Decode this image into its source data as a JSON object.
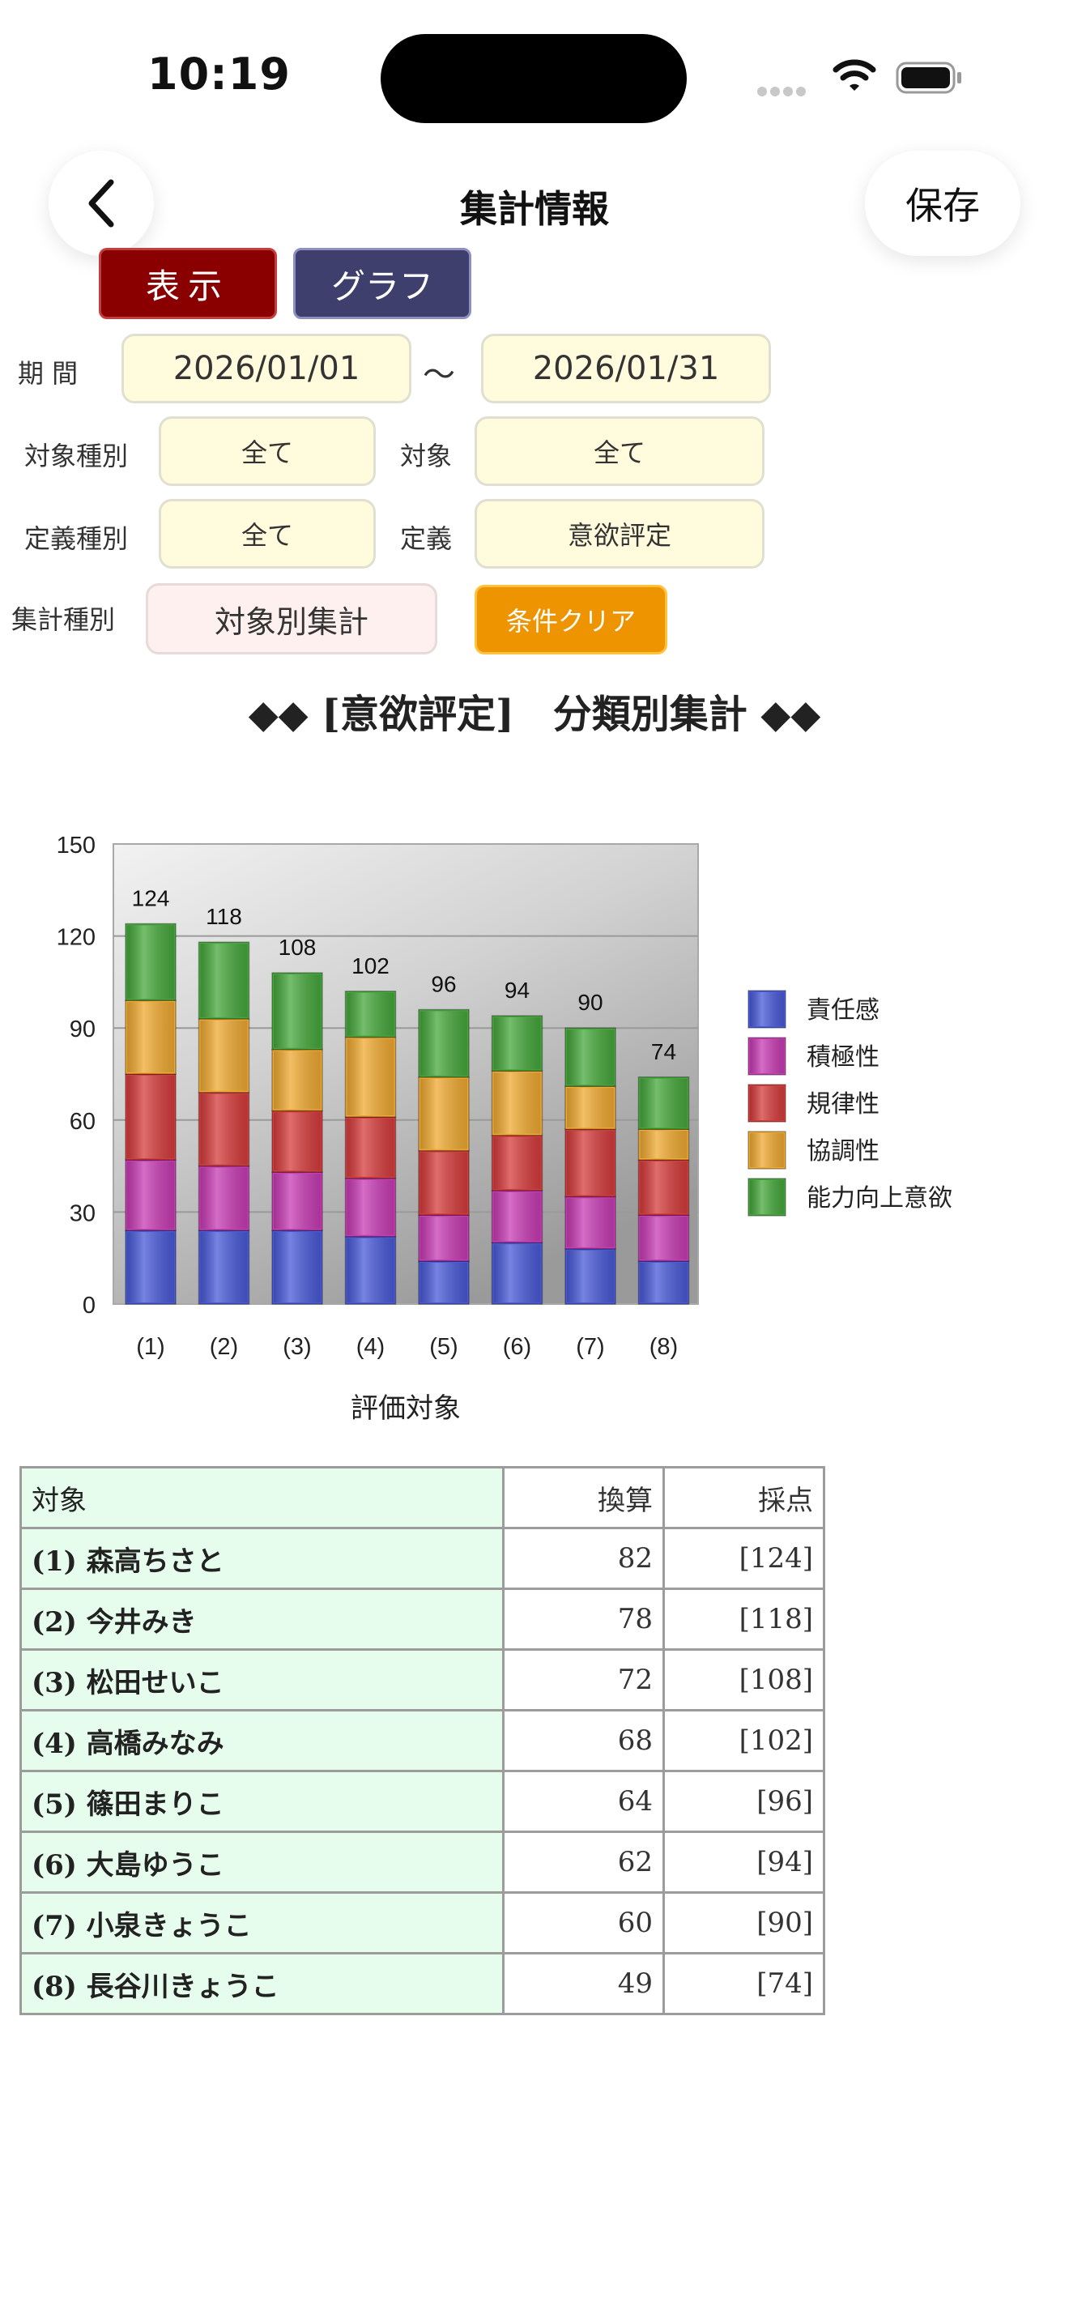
{
  "status": {
    "time": "10:19"
  },
  "nav": {
    "title": "集計情報",
    "save_label": "保存"
  },
  "mode": {
    "display_label": "表示",
    "graph_label": "グラフ"
  },
  "filters": {
    "period_label": "期 間",
    "date_from": "2026/01/01",
    "tilde": "～",
    "date_to": "2026/01/31",
    "target_type_label": "対象種別",
    "target_type_value": "全て",
    "target_label": "対象",
    "target_value": "全て",
    "def_type_label": "定義種別",
    "def_type_value": "全て",
    "def_label": "定義",
    "def_value": "意欲評定",
    "agg_type_label": "集計種別",
    "agg_type_value": "対象別集計",
    "clear_label": "条件クリア"
  },
  "report_title": "◆◆ [意欲評定]　分類別集計 ◆◆",
  "chart_data": {
    "type": "bar",
    "stacked": true,
    "categories": [
      "(1)",
      "(2)",
      "(3)",
      "(4)",
      "(5)",
      "(6)",
      "(7)",
      "(8)"
    ],
    "series": [
      {
        "name": "責任感",
        "color": "#4a5ad8",
        "values": [
          24,
          24,
          24,
          22,
          14,
          20,
          18,
          14
        ]
      },
      {
        "name": "積極性",
        "color": "#c83cb4",
        "values": [
          23,
          21,
          19,
          19,
          15,
          17,
          17,
          15
        ]
      },
      {
        "name": "規律性",
        "color": "#d63c3c",
        "values": [
          28,
          24,
          20,
          20,
          21,
          18,
          22,
          18
        ]
      },
      {
        "name": "協調性",
        "color": "#f0aa32",
        "values": [
          24,
          24,
          20,
          26,
          24,
          21,
          14,
          10
        ]
      },
      {
        "name": "能力向上意欲",
        "color": "#46a83c",
        "values": [
          25,
          25,
          25,
          15,
          22,
          18,
          19,
          17
        ]
      }
    ],
    "totals": [
      124,
      118,
      108,
      102,
      96,
      94,
      90,
      74
    ],
    "xlabel": "評価対象",
    "ylabel": "",
    "ylim": [
      0,
      150
    ],
    "yticks": [
      0,
      30,
      60,
      90,
      120,
      150
    ],
    "legend": "right",
    "grid": true
  },
  "table": {
    "headers": {
      "target": "対象",
      "converted": "換算",
      "score": "採点"
    },
    "rows": [
      {
        "name": "(1) 森高ちさと",
        "converted": "82",
        "score": "[124]"
      },
      {
        "name": "(2) 今井みき",
        "converted": "78",
        "score": "[118]"
      },
      {
        "name": "(3) 松田せいこ",
        "converted": "72",
        "score": "[108]"
      },
      {
        "name": "(4) 高橋みなみ",
        "converted": "68",
        "score": "[102]"
      },
      {
        "name": "(5) 篠田まりこ",
        "converted": "64",
        "score": "[96]"
      },
      {
        "name": "(6) 大島ゆうこ",
        "converted": "62",
        "score": "[94]"
      },
      {
        "name": "(7) 小泉きょうこ",
        "converted": "60",
        "score": "[90]"
      },
      {
        "name": "(8) 長谷川きょうこ",
        "converted": "49",
        "score": "[74]"
      }
    ]
  }
}
